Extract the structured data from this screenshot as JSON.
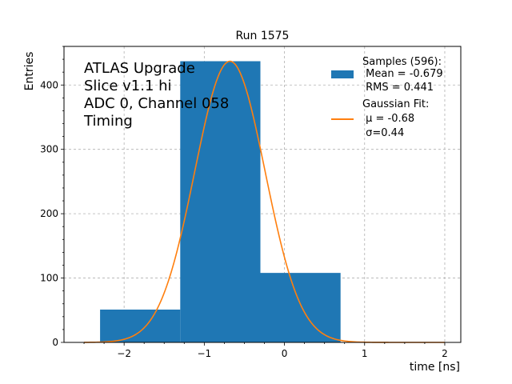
{
  "chart_data": {
    "type": "bar",
    "title": "Run 1575",
    "xlabel": "time [ns]",
    "ylabel": "Entries",
    "xlim": [
      -2.75,
      2.2
    ],
    "ylim": [
      0,
      460
    ],
    "xticks": [
      -2,
      -1,
      0,
      1,
      2
    ],
    "xtick_labels": [
      "−2",
      "−1",
      "0",
      "1",
      "2"
    ],
    "yticks": [
      0,
      100,
      200,
      300,
      400
    ],
    "ytick_labels": [
      "0",
      "100",
      "200",
      "300",
      "400"
    ],
    "grid": true,
    "legend_position": "top-right",
    "annotation_lines": [
      "ATLAS Upgrade",
      "Slice v1.1 hi",
      "ADC 0, Channel 058",
      "Timing"
    ],
    "histogram": {
      "name_lines": [
        "Samples (596):",
        " Mean = -0.679",
        " RMS = 0.441"
      ],
      "color": "#1f77b4",
      "bins": [
        {
          "x0": -2.3,
          "x1": -1.3,
          "value": 51
        },
        {
          "x0": -1.3,
          "x1": -0.3,
          "value": 437
        },
        {
          "x0": -0.3,
          "x1": 0.7,
          "value": 108
        }
      ]
    },
    "fit": {
      "name_lines": [
        "Gaussian Fit:",
        " μ = -0.68",
        " σ=0.44"
      ],
      "color": "#ff7f0e",
      "type": "gaussian",
      "mu": -0.68,
      "sigma": 0.44,
      "amplitude": 437,
      "x_range": [
        -2.5,
        2.0
      ]
    }
  }
}
